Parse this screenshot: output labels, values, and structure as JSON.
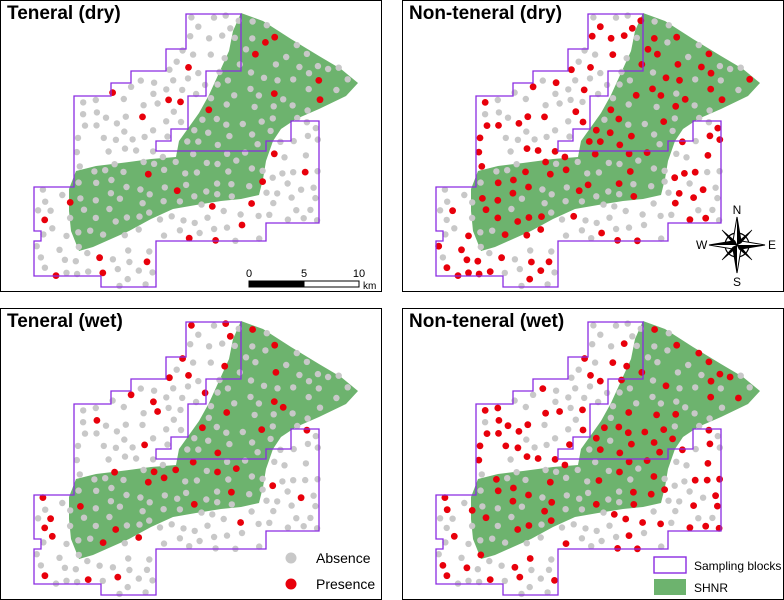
{
  "panels": [
    {
      "title": "Teneral (dry)",
      "presence_share": 0.1
    },
    {
      "title": "Non-teneral (dry)",
      "presence_share": 0.42
    },
    {
      "title": "Teneral (wet)",
      "presence_share": 0.14
    },
    {
      "title": "Non-teneral (wet)",
      "presence_share": 0.4
    }
  ],
  "scale_bar": {
    "ticks": [
      "0",
      "5",
      "10"
    ],
    "unit": "km"
  },
  "north_arrow": {
    "n": "N",
    "s": "S",
    "e": "E",
    "w": "W"
  },
  "legend_points": {
    "absence": "Absence",
    "presence": "Presence"
  },
  "legend_areas": {
    "sampling_blocks": "Sampling blocks",
    "reserve": "SHNR"
  },
  "colors": {
    "reserve": "#6db36e",
    "block_outline": "#8a2be2",
    "absence": "#c8c8c8",
    "presence": "#e8000b",
    "presence_stroke": "#a00000"
  }
}
